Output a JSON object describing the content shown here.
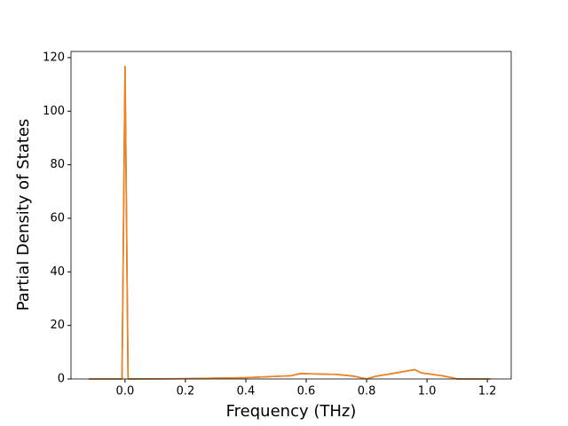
{
  "chart_data": {
    "type": "line",
    "x_label": "Frequency (THz)",
    "y_label": "Partial Density of States",
    "x": [
      -0.12,
      -0.01,
      0.0,
      0.01,
      0.2,
      0.4,
      0.55,
      0.58,
      0.7,
      0.76,
      0.8,
      0.83,
      0.9,
      0.96,
      0.98,
      1.05,
      1.09,
      1.1,
      1.21
    ],
    "series": [
      {
        "color": "#1f77b4",
        "values": [
          0,
          0,
          116.7,
          0,
          0.1,
          0.5,
          1.2,
          2,
          1.7,
          1.0,
          0,
          1.0,
          2.3,
          3.5,
          2.3,
          1.2,
          0.3,
          0,
          0
        ]
      },
      {
        "color": "#ff7f0e",
        "values": [
          0,
          0,
          116.7,
          0,
          0.1,
          0.5,
          1.2,
          2,
          1.7,
          1.0,
          0,
          1.0,
          2.3,
          3.5,
          2.3,
          1.2,
          0.3,
          0,
          0
        ]
      }
    ],
    "xlim": [
      -0.179,
      1.279
    ],
    "ylim": [
      0,
      122.3
    ],
    "xticks": [
      {
        "value": 0,
        "label": "0.0"
      },
      0.2,
      0.4,
      0.6,
      0.8,
      {
        "value": 1,
        "label": "1.0"
      },
      1.2
    ],
    "yticks": [
      0,
      20,
      40,
      60,
      80,
      100,
      120
    ],
    "grid": false
  }
}
